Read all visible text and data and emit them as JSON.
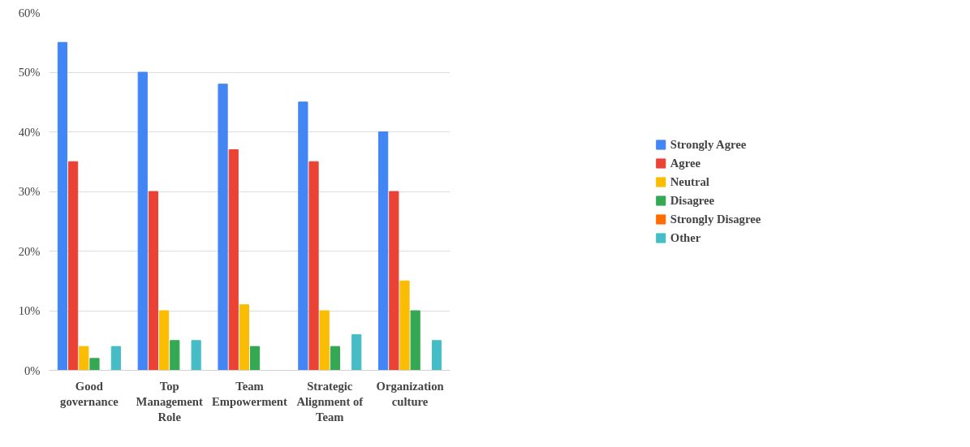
{
  "chart_data": {
    "type": "bar",
    "categories": [
      "Good governance",
      "Top Management Role",
      "Team Empowerment",
      "Strategic Alignment of Team",
      "Organization culture"
    ],
    "series": [
      {
        "name": "Strongly Agree",
        "color": "#4285f4",
        "values": [
          55,
          50,
          48,
          45,
          40
        ]
      },
      {
        "name": "Agree",
        "color": "#ea4335",
        "values": [
          35,
          30,
          37,
          35,
          30
        ]
      },
      {
        "name": "Neutral",
        "color": "#fbbc04",
        "values": [
          4,
          10,
          11,
          10,
          15
        ]
      },
      {
        "name": "Disagree",
        "color": "#34a853",
        "values": [
          2,
          5,
          4,
          4,
          10
        ]
      },
      {
        "name": "Strongly Disagree",
        "color": "#ff6d01",
        "values": [
          0,
          0,
          0,
          0,
          0
        ]
      },
      {
        "name": "Other",
        "color": "#46bdc6",
        "values": [
          4,
          5,
          0,
          6,
          5
        ]
      }
    ],
    "ylim": [
      0,
      60
    ],
    "yticks": [
      {
        "value": 0,
        "label": "0%"
      },
      {
        "value": 10,
        "label": "10%"
      },
      {
        "value": 20,
        "label": "20%"
      },
      {
        "value": 30,
        "label": "30%"
      },
      {
        "value": 40,
        "label": "40%"
      },
      {
        "value": 50,
        "label": "50%"
      },
      {
        "value": 60,
        "label": "60%"
      }
    ],
    "grid": "y",
    "legend": "right"
  }
}
